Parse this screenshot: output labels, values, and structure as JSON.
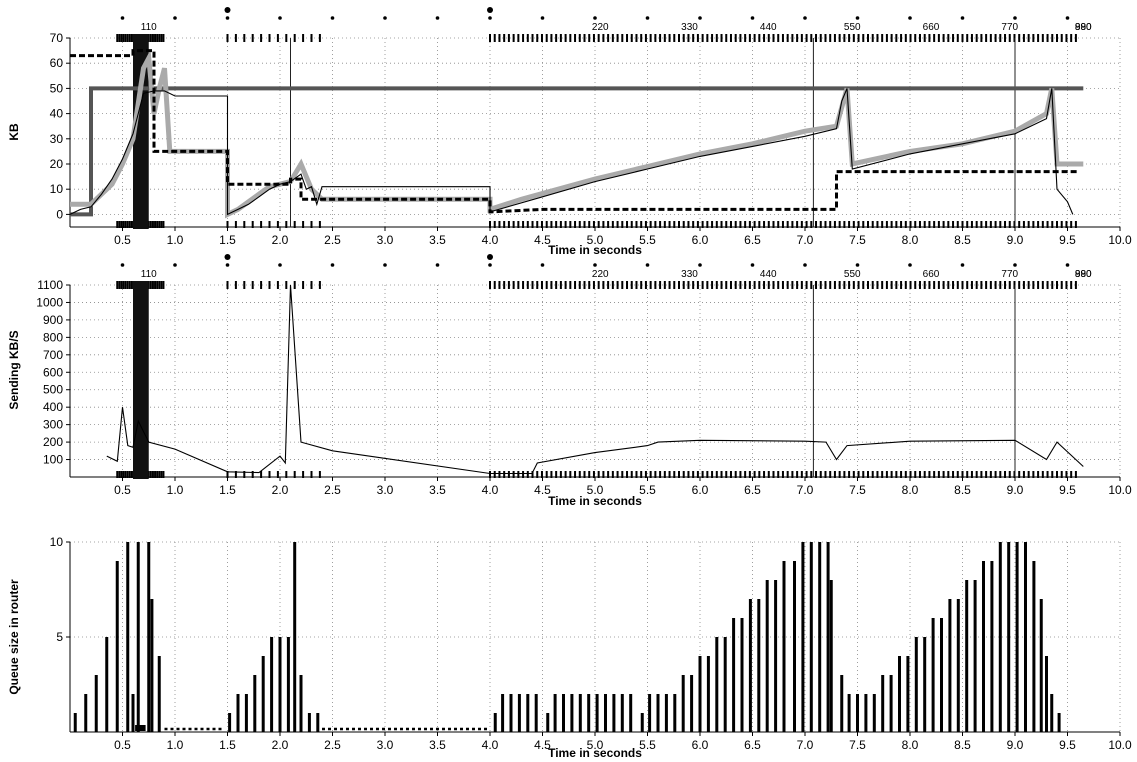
{
  "chart_data": [
    {
      "type": "line",
      "xlabel": "Time in seconds",
      "ylabel": "KB",
      "xlim": [
        0,
        10
      ],
      "ylim": [
        -5,
        70
      ],
      "x_ticks": [
        0.5,
        1.0,
        1.5,
        2.0,
        2.5,
        3.0,
        3.5,
        4.0,
        4.5,
        5.0,
        5.5,
        6.0,
        6.5,
        7.0,
        7.5,
        8.0,
        8.5,
        9.0,
        9.5,
        10.0
      ],
      "y_ticks": [
        0,
        10,
        20,
        30,
        40,
        50,
        60,
        70
      ],
      "grid": true,
      "top_annotations": [
        "110",
        "220",
        "330",
        "440",
        "550",
        "660",
        "770",
        "880",
        "990"
      ],
      "vertical_markers": [
        2.1,
        7.08,
        9.0
      ],
      "series": [
        {
          "style": "thick-dark-gray",
          "color": "#555555",
          "points": [
            [
              0.0,
              0
            ],
            [
              0.2,
              0
            ],
            [
              0.2,
              50
            ],
            [
              9.65,
              50
            ]
          ]
        },
        {
          "style": "thick-light-gray",
          "color": "#aaaaaa",
          "points": [
            [
              0.0,
              4
            ],
            [
              0.2,
              4
            ],
            [
              0.3,
              8
            ],
            [
              0.4,
              12
            ],
            [
              0.5,
              20
            ],
            [
              0.6,
              30
            ],
            [
              0.7,
              58
            ],
            [
              0.75,
              62
            ],
            [
              0.8,
              40
            ],
            [
              0.85,
              50
            ],
            [
              0.9,
              58
            ],
            [
              0.95,
              25
            ],
            [
              1.5,
              25
            ],
            [
              1.5,
              0
            ],
            [
              1.6,
              2
            ],
            [
              1.7,
              5
            ],
            [
              1.8,
              8
            ],
            [
              1.9,
              11
            ],
            [
              2.0,
              12
            ],
            [
              2.1,
              13
            ],
            [
              2.2,
              20
            ],
            [
              2.3,
              10
            ],
            [
              2.4,
              6
            ],
            [
              2.5,
              6
            ],
            [
              4.0,
              6
            ],
            [
              4.0,
              2
            ],
            [
              4.3,
              6
            ],
            [
              5.0,
              14
            ],
            [
              5.5,
              19
            ],
            [
              6.0,
              24
            ],
            [
              6.5,
              28
            ],
            [
              7.0,
              33
            ],
            [
              7.3,
              35
            ],
            [
              7.4,
              50
            ],
            [
              7.45,
              20
            ],
            [
              8.0,
              25
            ],
            [
              8.5,
              28
            ],
            [
              9.0,
              33
            ],
            [
              9.3,
              40
            ],
            [
              9.35,
              50
            ],
            [
              9.4,
              20
            ],
            [
              9.65,
              20
            ]
          ]
        },
        {
          "style": "thin-black",
          "color": "#000000",
          "points": [
            [
              0.0,
              0
            ],
            [
              0.1,
              2
            ],
            [
              0.2,
              3
            ],
            [
              0.3,
              8
            ],
            [
              0.4,
              14
            ],
            [
              0.5,
              22
            ],
            [
              0.6,
              32
            ],
            [
              0.7,
              48
            ],
            [
              0.8,
              49
            ],
            [
              0.9,
              49
            ],
            [
              1.0,
              47
            ],
            [
              1.5,
              47
            ],
            [
              1.5,
              0
            ],
            [
              1.6,
              2
            ],
            [
              1.7,
              4
            ],
            [
              1.8,
              7
            ],
            [
              1.9,
              10
            ],
            [
              2.0,
              12
            ],
            [
              2.1,
              13
            ],
            [
              2.2,
              16
            ],
            [
              2.25,
              10
            ],
            [
              2.3,
              11
            ],
            [
              2.35,
              4
            ],
            [
              2.4,
              11
            ],
            [
              4.0,
              11
            ],
            [
              4.0,
              1
            ],
            [
              4.5,
              7
            ],
            [
              5.0,
              13
            ],
            [
              5.5,
              18
            ],
            [
              6.0,
              23
            ],
            [
              6.5,
              27
            ],
            [
              7.0,
              31
            ],
            [
              7.3,
              34
            ],
            [
              7.35,
              45
            ],
            [
              7.4,
              50
            ],
            [
              7.45,
              18
            ],
            [
              8.0,
              24
            ],
            [
              8.5,
              28
            ],
            [
              9.0,
              32
            ],
            [
              9.3,
              38
            ],
            [
              9.35,
              50
            ],
            [
              9.4,
              10
            ],
            [
              9.5,
              5
            ],
            [
              9.55,
              0
            ]
          ]
        },
        {
          "style": "dashed-black",
          "color": "#000000",
          "points": [
            [
              0.0,
              63
            ],
            [
              0.6,
              63
            ],
            [
              0.6,
              65
            ],
            [
              0.8,
              65
            ],
            [
              0.8,
              25
            ],
            [
              1.5,
              25
            ],
            [
              1.5,
              12
            ],
            [
              2.1,
              12
            ],
            [
              2.1,
              14
            ],
            [
              2.2,
              14
            ],
            [
              2.2,
              6
            ],
            [
              4.0,
              6
            ],
            [
              4.0,
              1
            ],
            [
              4.5,
              2
            ],
            [
              7.3,
              2
            ],
            [
              7.3,
              17
            ],
            [
              9.6,
              17
            ]
          ]
        }
      ]
    },
    {
      "type": "line",
      "xlabel": "Time in seconds",
      "ylabel": "Sending  KB/S",
      "xlim": [
        0,
        10
      ],
      "ylim": [
        0,
        1100
      ],
      "x_ticks": [
        0.5,
        1.0,
        1.5,
        2.0,
        2.5,
        3.0,
        3.5,
        4.0,
        4.5,
        5.0,
        5.5,
        6.0,
        6.5,
        7.0,
        7.5,
        8.0,
        8.5,
        9.0,
        9.5,
        10.0
      ],
      "y_ticks": [
        100,
        200,
        300,
        400,
        500,
        600,
        700,
        800,
        900,
        1000,
        1100
      ],
      "grid": true,
      "top_annotations": [
        "110",
        "220",
        "330",
        "440",
        "550",
        "660",
        "770",
        "880",
        "990"
      ],
      "vertical_markers": [
        7.08,
        9.0
      ],
      "series": [
        {
          "style": "thin-black",
          "color": "#000000",
          "points": [
            [
              0.35,
              120
            ],
            [
              0.45,
              90
            ],
            [
              0.5,
              400
            ],
            [
              0.55,
              180
            ],
            [
              0.6,
              170
            ],
            [
              0.65,
              320
            ],
            [
              0.7,
              260
            ],
            [
              0.75,
              200
            ],
            [
              1.0,
              160
            ],
            [
              1.5,
              30
            ],
            [
              1.8,
              25
            ],
            [
              2.0,
              120
            ],
            [
              2.05,
              80
            ],
            [
              2.1,
              1100
            ],
            [
              2.2,
              200
            ],
            [
              2.5,
              150
            ],
            [
              4.0,
              20
            ],
            [
              4.4,
              20
            ],
            [
              4.45,
              80
            ],
            [
              5.0,
              140
            ],
            [
              5.5,
              180
            ],
            [
              5.6,
              200
            ],
            [
              6.0,
              210
            ],
            [
              7.0,
              205
            ],
            [
              7.2,
              200
            ],
            [
              7.3,
              100
            ],
            [
              7.4,
              180
            ],
            [
              8.0,
              205
            ],
            [
              9.0,
              210
            ],
            [
              9.3,
              100
            ],
            [
              9.4,
              200
            ],
            [
              9.65,
              60
            ]
          ]
        }
      ]
    },
    {
      "type": "bar",
      "xlabel": "Time in seconds",
      "ylabel": "Queue size in router",
      "xlim": [
        0,
        10
      ],
      "ylim": [
        0,
        10
      ],
      "x_ticks": [
        0.5,
        1.0,
        1.5,
        2.0,
        2.5,
        3.0,
        3.5,
        4.0,
        4.5,
        5.0,
        5.5,
        6.0,
        6.5,
        7.0,
        7.5,
        8.0,
        8.5,
        9.0,
        9.5,
        10.0
      ],
      "y_ticks": [
        5,
        10
      ],
      "grid": true,
      "bars": [
        [
          0.05,
          1
        ],
        [
          0.15,
          2
        ],
        [
          0.25,
          3
        ],
        [
          0.35,
          5
        ],
        [
          0.45,
          9
        ],
        [
          0.55,
          10
        ],
        [
          0.6,
          2
        ],
        [
          0.65,
          10
        ],
        [
          0.75,
          10
        ],
        [
          0.78,
          7
        ],
        [
          0.85,
          4
        ],
        [
          1.52,
          1
        ],
        [
          1.6,
          2
        ],
        [
          1.68,
          2
        ],
        [
          1.76,
          3
        ],
        [
          1.84,
          4
        ],
        [
          1.92,
          5
        ],
        [
          2.0,
          5
        ],
        [
          2.08,
          5
        ],
        [
          2.14,
          10
        ],
        [
          2.2,
          3
        ],
        [
          2.28,
          1
        ],
        [
          2.36,
          1
        ],
        [
          4.05,
          1
        ],
        [
          4.12,
          2
        ],
        [
          4.2,
          2
        ],
        [
          4.28,
          2
        ],
        [
          4.36,
          2
        ],
        [
          4.44,
          2
        ],
        [
          4.55,
          1
        ],
        [
          4.62,
          2
        ],
        [
          4.7,
          2
        ],
        [
          4.78,
          2
        ],
        [
          4.86,
          2
        ],
        [
          4.94,
          2
        ],
        [
          5.02,
          2
        ],
        [
          5.1,
          2
        ],
        [
          5.18,
          2
        ],
        [
          5.26,
          2
        ],
        [
          5.34,
          2
        ],
        [
          5.45,
          1
        ],
        [
          5.52,
          2
        ],
        [
          5.6,
          2
        ],
        [
          5.68,
          2
        ],
        [
          5.76,
          2
        ],
        [
          5.84,
          3
        ],
        [
          5.92,
          3
        ],
        [
          6.0,
          4
        ],
        [
          6.08,
          4
        ],
        [
          6.16,
          5
        ],
        [
          6.24,
          5
        ],
        [
          6.32,
          6
        ],
        [
          6.4,
          6
        ],
        [
          6.48,
          7
        ],
        [
          6.56,
          7
        ],
        [
          6.64,
          8
        ],
        [
          6.72,
          8
        ],
        [
          6.8,
          9
        ],
        [
          6.9,
          9
        ],
        [
          6.98,
          10
        ],
        [
          7.06,
          10
        ],
        [
          7.14,
          10
        ],
        [
          7.22,
          10
        ],
        [
          7.25,
          8
        ],
        [
          7.35,
          3
        ],
        [
          7.42,
          2
        ],
        [
          7.5,
          2
        ],
        [
          7.58,
          2
        ],
        [
          7.66,
          2
        ],
        [
          7.74,
          3
        ],
        [
          7.82,
          3
        ],
        [
          7.9,
          4
        ],
        [
          7.98,
          4
        ],
        [
          8.06,
          5
        ],
        [
          8.14,
          5
        ],
        [
          8.22,
          6
        ],
        [
          8.3,
          6
        ],
        [
          8.38,
          7
        ],
        [
          8.46,
          7
        ],
        [
          8.54,
          8
        ],
        [
          8.62,
          8
        ],
        [
          8.7,
          9
        ],
        [
          8.78,
          9
        ],
        [
          8.86,
          10
        ],
        [
          8.94,
          10
        ],
        [
          9.02,
          10
        ],
        [
          9.1,
          10
        ],
        [
          9.18,
          9
        ],
        [
          9.25,
          7
        ],
        [
          9.3,
          4
        ],
        [
          9.35,
          2
        ],
        [
          9.42,
          1
        ]
      ],
      "zero_dotted_segments": [
        [
          0.9,
          1.45
        ],
        [
          2.4,
          4.0
        ]
      ]
    }
  ],
  "colors": {
    "axis": "#000000",
    "grid": "#888888",
    "dark_gray": "#555555",
    "light_gray": "#aaaaaa"
  }
}
